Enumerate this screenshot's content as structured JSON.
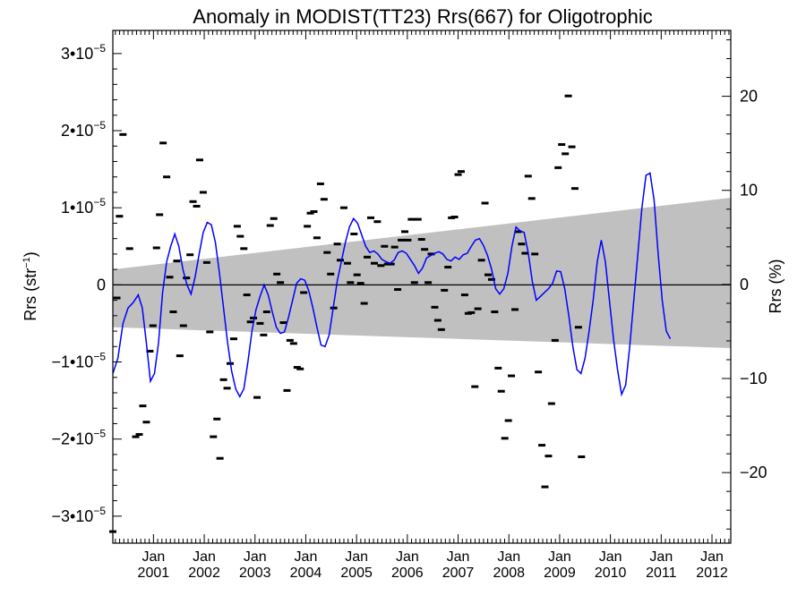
{
  "chart_data": {
    "type": "scatter",
    "title": "Anomaly in MODIST(TT23) Rrs(667) for Oligotrophic",
    "ylabel_left": "Rrs (str",
    "ylabel_left_sup": "−1",
    "ylabel_left_close": ")",
    "ylabel_right": "Rrs (%)",
    "x_range": [
      2000.2,
      2012.37
    ],
    "y_range": [
      -3.35e-05,
      3.3e-05
    ],
    "y_right_range": [
      -27.5,
      27.0
    ],
    "left_ticks": [
      {
        "value": 3e-05,
        "label": "3•10",
        "exp": "−5"
      },
      {
        "value": 2e-05,
        "label": "2•10",
        "exp": "−5"
      },
      {
        "value": 1e-05,
        "label": "1•10",
        "exp": "−5"
      },
      {
        "value": 0,
        "label": "0",
        "exp": ""
      },
      {
        "value": -1e-05,
        "label": "−1•10",
        "exp": "−5"
      },
      {
        "value": -2e-05,
        "label": "−2•10",
        "exp": "−5"
      },
      {
        "value": -3e-05,
        "label": "−3•10",
        "exp": "−5"
      }
    ],
    "right_ticks": [
      {
        "value": 20,
        "label": "20"
      },
      {
        "value": 10,
        "label": "10"
      },
      {
        "value": 0,
        "label": "0"
      },
      {
        "value": -10,
        "label": "−10"
      },
      {
        "value": -20,
        "label": "−20"
      }
    ],
    "x_ticks": [
      {
        "value": 2001.0,
        "month": "Jan",
        "year": "2001"
      },
      {
        "value": 2002.0,
        "month": "Jan",
        "year": "2002"
      },
      {
        "value": 2003.0,
        "month": "Jan",
        "year": "2003"
      },
      {
        "value": 2004.0,
        "month": "Jan",
        "year": "2004"
      },
      {
        "value": 2005.0,
        "month": "Jan",
        "year": "2005"
      },
      {
        "value": 2006.0,
        "month": "Jan",
        "year": "2006"
      },
      {
        "value": 2007.0,
        "month": "Jan",
        "year": "2007"
      },
      {
        "value": 2008.0,
        "month": "Jan",
        "year": "2008"
      },
      {
        "value": 2009.0,
        "month": "Jan",
        "year": "2009"
      },
      {
        "value": 2010.0,
        "month": "Jan",
        "year": "2010"
      },
      {
        "value": 2011.0,
        "month": "Jan",
        "year": "2011"
      },
      {
        "value": 2012.0,
        "month": "Jan",
        "year": "2012"
      }
    ],
    "zero_line": 0,
    "envelope": {
      "color": "#c0c0c0",
      "upper": [
        [
          2000.2,
          2e-06
        ],
        [
          2012.37,
          1.13e-05
        ]
      ],
      "lower": [
        [
          2000.2,
          -5.5e-06
        ],
        [
          2012.37,
          -8.2e-06
        ]
      ]
    },
    "line_series": {
      "color": "#0000ff",
      "points": [
        [
          2000.2,
          -1.15e-05
        ],
        [
          2000.3,
          -9.5e-06
        ],
        [
          2000.4,
          -5e-06
        ],
        [
          2000.5,
          -3e-06
        ],
        [
          2000.6,
          -2.3e-06
        ],
        [
          2000.7,
          -1.3e-06
        ],
        [
          2000.78,
          -3e-06
        ],
        [
          2000.86,
          -7.5e-06
        ],
        [
          2000.94,
          -1.25e-05
        ],
        [
          2001.02,
          -1.15e-05
        ],
        [
          2001.1,
          -7.5e-06
        ],
        [
          2001.18,
          -1e-06
        ],
        [
          2001.26,
          3e-06
        ],
        [
          2001.34,
          5e-06
        ],
        [
          2001.42,
          6.6e-06
        ],
        [
          2001.5,
          5e-06
        ],
        [
          2001.58,
          2e-06
        ],
        [
          2001.66,
          0.0
        ],
        [
          2001.74,
          -1.2e-06
        ],
        [
          2001.82,
          1e-06
        ],
        [
          2001.9,
          4e-06
        ],
        [
          2001.98,
          6.8e-06
        ],
        [
          2002.06,
          8.1e-06
        ],
        [
          2002.14,
          7.8e-06
        ],
        [
          2002.22,
          5.5e-06
        ],
        [
          2002.3,
          1.5e-06
        ],
        [
          2002.38,
          -3e-06
        ],
        [
          2002.46,
          -7.5e-06
        ],
        [
          2002.54,
          -1.12e-05
        ],
        [
          2002.62,
          -1.35e-05
        ],
        [
          2002.7,
          -1.45e-05
        ],
        [
          2002.78,
          -1.35e-05
        ],
        [
          2002.86,
          -1e-05
        ],
        [
          2002.94,
          -6e-06
        ],
        [
          2003.02,
          -3.2e-06
        ],
        [
          2003.1,
          -1.5e-06
        ],
        [
          2003.18,
          0.0
        ],
        [
          2003.26,
          -1.3e-06
        ],
        [
          2003.34,
          -3.5e-06
        ],
        [
          2003.42,
          -5.5e-06
        ],
        [
          2003.5,
          -6.3e-06
        ],
        [
          2003.58,
          -6.1e-06
        ],
        [
          2003.66,
          -4.2e-06
        ],
        [
          2003.74,
          -2e-06
        ],
        [
          2003.82,
          2e-07
        ],
        [
          2003.9,
          8e-07
        ],
        [
          2003.98,
          6e-07
        ],
        [
          2004.06,
          -8e-07
        ],
        [
          2004.14,
          -3e-06
        ],
        [
          2004.22,
          -5.5e-06
        ],
        [
          2004.3,
          -7.8e-06
        ],
        [
          2004.38,
          -8e-06
        ],
        [
          2004.46,
          -6.5e-06
        ],
        [
          2004.54,
          -3e-06
        ],
        [
          2004.62,
          5e-07
        ],
        [
          2004.7,
          3e-06
        ],
        [
          2004.78,
          5.5e-06
        ],
        [
          2004.86,
          7.5e-06
        ],
        [
          2004.94,
          8.6e-06
        ],
        [
          2005.02,
          8e-06
        ],
        [
          2005.1,
          6.5e-06
        ],
        [
          2005.18,
          5e-06
        ],
        [
          2005.26,
          4.2e-06
        ],
        [
          2005.34,
          4.4e-06
        ],
        [
          2005.42,
          4e-06
        ],
        [
          2005.5,
          3.3e-06
        ],
        [
          2005.58,
          3e-06
        ],
        [
          2005.66,
          2.8e-06
        ],
        [
          2005.74,
          3.2e-06
        ],
        [
          2005.82,
          4.2e-06
        ],
        [
          2005.9,
          4.4e-06
        ],
        [
          2005.98,
          4.1e-06
        ],
        [
          2006.06,
          3.3e-06
        ],
        [
          2006.14,
          2.5e-06
        ],
        [
          2006.22,
          1.5e-06
        ],
        [
          2006.3,
          2.2e-06
        ],
        [
          2006.38,
          3.5e-06
        ],
        [
          2006.46,
          3.8e-06
        ],
        [
          2006.54,
          4.1e-06
        ],
        [
          2006.62,
          4.3e-06
        ],
        [
          2006.7,
          4e-06
        ],
        [
          2006.78,
          3.3e-06
        ],
        [
          2006.86,
          3.1e-06
        ],
        [
          2006.94,
          3.6e-06
        ],
        [
          2007.02,
          3.3e-06
        ],
        [
          2007.1,
          3.9e-06
        ],
        [
          2007.18,
          4.1e-06
        ],
        [
          2007.26,
          5e-06
        ],
        [
          2007.34,
          5.8e-06
        ],
        [
          2007.42,
          6e-06
        ],
        [
          2007.5,
          5.1e-06
        ],
        [
          2007.58,
          3.8e-06
        ],
        [
          2007.66,
          2e-06
        ],
        [
          2007.74,
          -5e-07
        ],
        [
          2007.82,
          -1.2e-06
        ],
        [
          2007.9,
          -5e-07
        ],
        [
          2007.98,
          1.5e-06
        ],
        [
          2008.06,
          5e-06
        ],
        [
          2008.14,
          7.5e-06
        ],
        [
          2008.22,
          7e-06
        ],
        [
          2008.3,
          6.8e-06
        ],
        [
          2008.38,
          4.2e-06
        ],
        [
          2008.46,
          5e-07
        ],
        [
          2008.54,
          -2e-06
        ],
        [
          2008.62,
          -1.5e-06
        ],
        [
          2008.7,
          -1e-06
        ],
        [
          2008.78,
          -5e-07
        ],
        [
          2008.86,
          2e-07
        ],
        [
          2008.94,
          1.8e-06
        ],
        [
          2009.02,
          1.7e-06
        ],
        [
          2009.1,
          -5e-07
        ],
        [
          2009.18,
          -4e-06
        ],
        [
          2009.26,
          -8e-06
        ],
        [
          2009.34,
          -1.1e-05
        ],
        [
          2009.42,
          -1.15e-05
        ],
        [
          2009.5,
          -9.5e-06
        ],
        [
          2009.58,
          -6e-06
        ],
        [
          2009.66,
          -2e-06
        ],
        [
          2009.74,
          3e-06
        ],
        [
          2009.82,
          5.8e-06
        ],
        [
          2009.9,
          3e-06
        ],
        [
          2009.98,
          -2e-06
        ],
        [
          2010.06,
          -7e-06
        ],
        [
          2010.14,
          -1.1e-05
        ],
        [
          2010.22,
          -1.42e-05
        ],
        [
          2010.3,
          -1.3e-05
        ],
        [
          2010.38,
          -8e-06
        ],
        [
          2010.46,
          -2e-06
        ],
        [
          2010.54,
          4e-06
        ],
        [
          2010.62,
          1e-05
        ],
        [
          2010.7,
          1.42e-05
        ],
        [
          2010.78,
          1.45e-05
        ],
        [
          2010.86,
          1.1e-05
        ],
        [
          2010.94,
          4e-06
        ],
        [
          2011.02,
          -2e-06
        ],
        [
          2011.1,
          -6e-06
        ],
        [
          2011.18,
          -7e-06
        ]
      ]
    },
    "scatter_points": [
      [
        2000.2,
        -3.2e-05
      ],
      [
        2000.28,
        -1.7e-06
      ],
      [
        2000.33,
        8.9e-06
      ],
      [
        2000.4,
        1.95e-05
      ],
      [
        2000.53,
        4.7e-06
      ],
      [
        2000.65,
        -1.97e-05
      ],
      [
        2000.72,
        -1.94e-05
      ],
      [
        2000.79,
        -1.57e-05
      ],
      [
        2000.86,
        -1.78e-05
      ],
      [
        2000.93,
        -8.6e-06
      ],
      [
        2000.99,
        -5.3e-06
      ],
      [
        2001.06,
        4.8e-06
      ],
      [
        2001.12,
        9.1e-06
      ],
      [
        2001.19,
        1.84e-05
      ],
      [
        2001.26,
        1.4e-05
      ],
      [
        2001.32,
        1e-06
      ],
      [
        2001.39,
        -3.5e-06
      ],
      [
        2001.46,
        3.1e-06
      ],
      [
        2001.52,
        -9.2e-06
      ],
      [
        2001.59,
        -5.3e-06
      ],
      [
        2001.65,
        9e-07
      ],
      [
        2001.72,
        3.9e-06
      ],
      [
        2001.78,
        1.08e-05
      ],
      [
        2001.85,
        1.02e-05
      ],
      [
        2001.91,
        1.62e-05
      ],
      [
        2001.98,
        1.2e-05
      ],
      [
        2002.05,
        2.9e-06
      ],
      [
        2002.11,
        -6.1e-06
      ],
      [
        2002.18,
        -1.97e-05
      ],
      [
        2002.25,
        -1.74e-05
      ],
      [
        2002.31,
        -2.25e-05
      ],
      [
        2002.38,
        -1.23e-05
      ],
      [
        2002.45,
        -1.34e-05
      ],
      [
        2002.51,
        -1.02e-05
      ],
      [
        2002.58,
        -7e-06
      ],
      [
        2002.65,
        7.6e-06
      ],
      [
        2002.71,
        6.3e-06
      ],
      [
        2002.78,
        4.7e-06
      ],
      [
        2002.84,
        -1.3e-06
      ],
      [
        2002.91,
        -4.8e-06
      ],
      [
        2002.97,
        -4.3e-06
      ],
      [
        2003.04,
        -1.46e-05
      ],
      [
        2003.1,
        -5e-06
      ],
      [
        2003.17,
        -6.5e-06
      ],
      [
        2003.23,
        -3.5e-06
      ],
      [
        2003.3,
        7.7e-06
      ],
      [
        2003.37,
        8.6e-06
      ],
      [
        2003.43,
        1.4e-06
      ],
      [
        2003.5,
        3e-07
      ],
      [
        2003.56,
        -4.9e-06
      ],
      [
        2003.63,
        -1.37e-05
      ],
      [
        2003.69,
        -7.2e-06
      ],
      [
        2003.76,
        -7.6e-06
      ],
      [
        2003.83,
        -1.07e-05
      ],
      [
        2003.89,
        -1.09e-05
      ],
      [
        2003.96,
        -1e-06
      ],
      [
        2004.03,
        7.6e-06
      ],
      [
        2004.09,
        9.3e-06
      ],
      [
        2004.16,
        9.5e-06
      ],
      [
        2004.22,
        6.1e-06
      ],
      [
        2004.29,
        1.31e-05
      ],
      [
        2004.36,
        1.11e-05
      ],
      [
        2004.42,
        4.2e-06
      ],
      [
        2004.49,
        1.4e-06
      ],
      [
        2004.55,
        -3e-06
      ],
      [
        2004.62,
        5.3e-06
      ],
      [
        2004.68,
        3.2e-06
      ],
      [
        2004.75,
        1e-05
      ],
      [
        2004.82,
        2.8e-06
      ],
      [
        2004.88,
        3e-07
      ],
      [
        2004.95,
        6.6e-06
      ],
      [
        2005.01,
        1.3e-06
      ],
      [
        2005.08,
        2e-07
      ],
      [
        2005.15,
        -2.4e-06
      ],
      [
        2005.21,
        3.6e-06
      ],
      [
        2005.28,
        8.7e-06
      ],
      [
        2005.35,
        2.8e-06
      ],
      [
        2005.41,
        8.2e-06
      ],
      [
        2005.48,
        2.5e-06
      ],
      [
        2005.55,
        5e-06
      ],
      [
        2005.61,
        2.7e-06
      ],
      [
        2005.68,
        2.7e-06
      ],
      [
        2005.75,
        4.9e-06
      ],
      [
        2005.81,
        -6e-07
      ],
      [
        2005.88,
        5.8e-06
      ],
      [
        2005.95,
        6.9e-06
      ],
      [
        2006.01,
        5.8e-06
      ],
      [
        2006.08,
        8.5e-06
      ],
      [
        2006.14,
        3e-07
      ],
      [
        2006.21,
        8.5e-06
      ],
      [
        2006.28,
        5.9e-06
      ],
      [
        2006.34,
        4.6e-06
      ],
      [
        2006.41,
        3e-07
      ],
      [
        2006.47,
        4e-06
      ],
      [
        2006.54,
        -2.9e-06
      ],
      [
        2006.6,
        -4.6e-06
      ],
      [
        2006.67,
        -5.8e-06
      ],
      [
        2006.73,
        -7e-07
      ],
      [
        2006.8,
        2.3e-06
      ],
      [
        2006.87,
        8.7e-06
      ],
      [
        2006.93,
        8.8e-06
      ],
      [
        2007.0,
        1.43e-05
      ],
      [
        2007.06,
        1.47e-05
      ],
      [
        2007.13,
        -1.3e-06
      ],
      [
        2007.2,
        -3.7e-06
      ],
      [
        2007.26,
        -3.6e-06
      ],
      [
        2007.33,
        -1.32e-05
      ],
      [
        2007.39,
        -3.1e-06
      ],
      [
        2007.46,
        3.2e-06
      ],
      [
        2007.53,
        1.06e-05
      ],
      [
        2007.59,
        1.3e-06
      ],
      [
        2007.66,
        7e-07
      ],
      [
        2007.72,
        -3.5e-06
      ],
      [
        2007.79,
        -1.08e-05
      ],
      [
        2007.85,
        -1.38e-05
      ],
      [
        2007.92,
        -1.99e-05
      ],
      [
        2007.99,
        -1.76e-05
      ],
      [
        2008.05,
        -1.18e-05
      ],
      [
        2008.12,
        -3.2e-06
      ],
      [
        2008.18,
        6.9e-06
      ],
      [
        2008.25,
        5.3e-06
      ],
      [
        2008.32,
        4.1e-06
      ],
      [
        2008.38,
        1.41e-05
      ],
      [
        2008.45,
        1.12e-05
      ],
      [
        2008.51,
        4e-06
      ],
      [
        2008.58,
        -1.13e-05
      ],
      [
        2008.65,
        -2.08e-05
      ],
      [
        2008.71,
        -2.62e-05
      ],
      [
        2008.78,
        -2.22e-05
      ],
      [
        2008.84,
        -1.54e-05
      ],
      [
        2008.91,
        -7.2e-06
      ],
      [
        2008.97,
        1.52e-05
      ],
      [
        2009.04,
        1.82e-05
      ],
      [
        2009.11,
        1.7e-05
      ],
      [
        2009.17,
        2.45e-05
      ],
      [
        2009.24,
        1.79e-05
      ],
      [
        2009.3,
        1.25e-05
      ],
      [
        2009.37,
        -5.5e-06
      ],
      [
        2009.43,
        -2.23e-05
      ]
    ]
  }
}
